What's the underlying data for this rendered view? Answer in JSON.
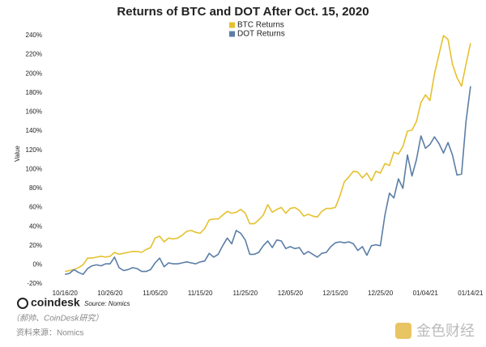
{
  "chart_data": {
    "type": "line",
    "title": "Returns of BTC and DOT After Oct. 15, 2020",
    "y_label": "Value",
    "x": [
      "10/16/20",
      "10/17/20",
      "10/18/20",
      "10/19/20",
      "10/20/20",
      "10/21/20",
      "10/22/20",
      "10/23/20",
      "10/24/20",
      "10/25/20",
      "10/26/20",
      "10/27/20",
      "10/28/20",
      "10/29/20",
      "10/30/20",
      "10/31/20",
      "11/01/20",
      "11/02/20",
      "11/03/20",
      "11/04/20",
      "11/05/20",
      "11/06/20",
      "11/07/20",
      "11/08/20",
      "11/09/20",
      "11/10/20",
      "11/11/20",
      "11/12/20",
      "11/13/20",
      "11/14/20",
      "11/15/20",
      "11/16/20",
      "11/17/20",
      "11/18/20",
      "11/19/20",
      "11/20/20",
      "11/21/20",
      "11/22/20",
      "11/23/20",
      "11/24/20",
      "11/25/20",
      "11/26/20",
      "11/27/20",
      "11/28/20",
      "11/29/20",
      "11/30/20",
      "12/01/20",
      "12/02/20",
      "12/03/20",
      "12/04/20",
      "12/05/20",
      "12/06/20",
      "12/07/20",
      "12/08/20",
      "12/09/20",
      "12/10/20",
      "12/11/20",
      "12/12/20",
      "12/13/20",
      "12/14/20",
      "12/15/20",
      "12/16/20",
      "12/17/20",
      "12/18/20",
      "12/19/20",
      "12/20/20",
      "12/21/20",
      "12/22/20",
      "12/23/20",
      "12/24/20",
      "12/25/20",
      "12/26/20",
      "12/27/20",
      "12/28/20",
      "12/29/20",
      "12/30/20",
      "12/31/20",
      "01/01/21",
      "01/02/21",
      "01/03/21",
      "01/04/21",
      "01/05/21",
      "01/06/21",
      "01/07/21",
      "01/08/21",
      "01/09/21",
      "01/10/21",
      "01/11/21",
      "01/12/21",
      "01/13/21",
      "01/14/21"
    ],
    "series": [
      {
        "name": "BTC Returns",
        "color": "#e5c12e",
        "values": [
          -7,
          -6,
          -5,
          -3,
          0,
          7,
          7,
          8,
          9,
          8,
          9,
          13,
          11,
          12,
          13,
          14,
          14,
          13,
          16,
          18,
          28,
          30,
          24,
          28,
          27,
          28,
          31,
          35,
          36,
          34,
          33,
          38,
          47,
          48,
          48,
          52,
          56,
          54,
          55,
          58,
          54,
          43,
          43,
          47,
          52,
          63,
          55,
          58,
          60,
          54,
          59,
          60,
          57,
          51,
          53,
          51,
          50,
          56,
          59,
          59,
          60,
          72,
          87,
          92,
          98,
          97,
          91,
          96,
          88,
          98,
          96,
          106,
          104,
          118,
          116,
          124,
          140,
          141,
          150,
          170,
          178,
          172,
          200,
          220,
          240,
          236,
          210,
          196,
          187,
          210,
          232
        ]
      },
      {
        "name": "DOT Returns",
        "color": "#5b7ea6",
        "values": [
          -10,
          -9,
          -5,
          -8,
          -10,
          -4,
          -1,
          0,
          -1,
          1,
          1,
          8,
          -3,
          -6,
          -5,
          -3,
          -4,
          -7,
          -7,
          -5,
          2,
          7,
          -2,
          2,
          1,
          1,
          2,
          3,
          2,
          1,
          3,
          4,
          12,
          8,
          11,
          20,
          28,
          22,
          36,
          33,
          26,
          11,
          11,
          13,
          20,
          25,
          18,
          26,
          25,
          17,
          19,
          17,
          18,
          11,
          14,
          11,
          8,
          12,
          13,
          19,
          23,
          24,
          23,
          24,
          22,
          15,
          19,
          10,
          20,
          21,
          20,
          52,
          75,
          70,
          90,
          80,
          115,
          93,
          110,
          135,
          122,
          126,
          134,
          127,
          117,
          128,
          115,
          94,
          95,
          150,
          187
        ]
      }
    ],
    "xlim": [
      "10/12/20",
      "01/16/21"
    ],
    "xticks": [
      "10/16/20",
      "10/26/20",
      "11/05/20",
      "11/15/20",
      "11/25/20",
      "12/05/20",
      "12/15/20",
      "12/25/20",
      "01/04/21",
      "01/14/21"
    ],
    "ylim": [
      -20,
      240
    ],
    "yticks": [
      {
        "value": -20,
        "label": "-20%"
      },
      {
        "value": 0,
        "label": "0%"
      },
      {
        "value": 20,
        "label": "20%"
      },
      {
        "value": 40,
        "label": "40%"
      },
      {
        "value": 60,
        "label": "60%"
      },
      {
        "value": 80,
        "label": "80%"
      },
      {
        "value": 100,
        "label": "100%"
      },
      {
        "value": 120,
        "label": "120%"
      },
      {
        "value": 140,
        "label": "140%"
      },
      {
        "value": 160,
        "label": "160%"
      },
      {
        "value": 180,
        "label": "180%"
      },
      {
        "value": 200,
        "label": "200%"
      },
      {
        "value": 220,
        "label": "220%"
      },
      {
        "value": 240,
        "label": "240%"
      }
    ],
    "grid": false,
    "legend": "top",
    "logo": "coindesk",
    "source": "Source: Nomics",
    "credit": "（郝帅、CoinDesk研究）",
    "footnote": "资料来源：Nomics",
    "watermark": "金色财经"
  }
}
